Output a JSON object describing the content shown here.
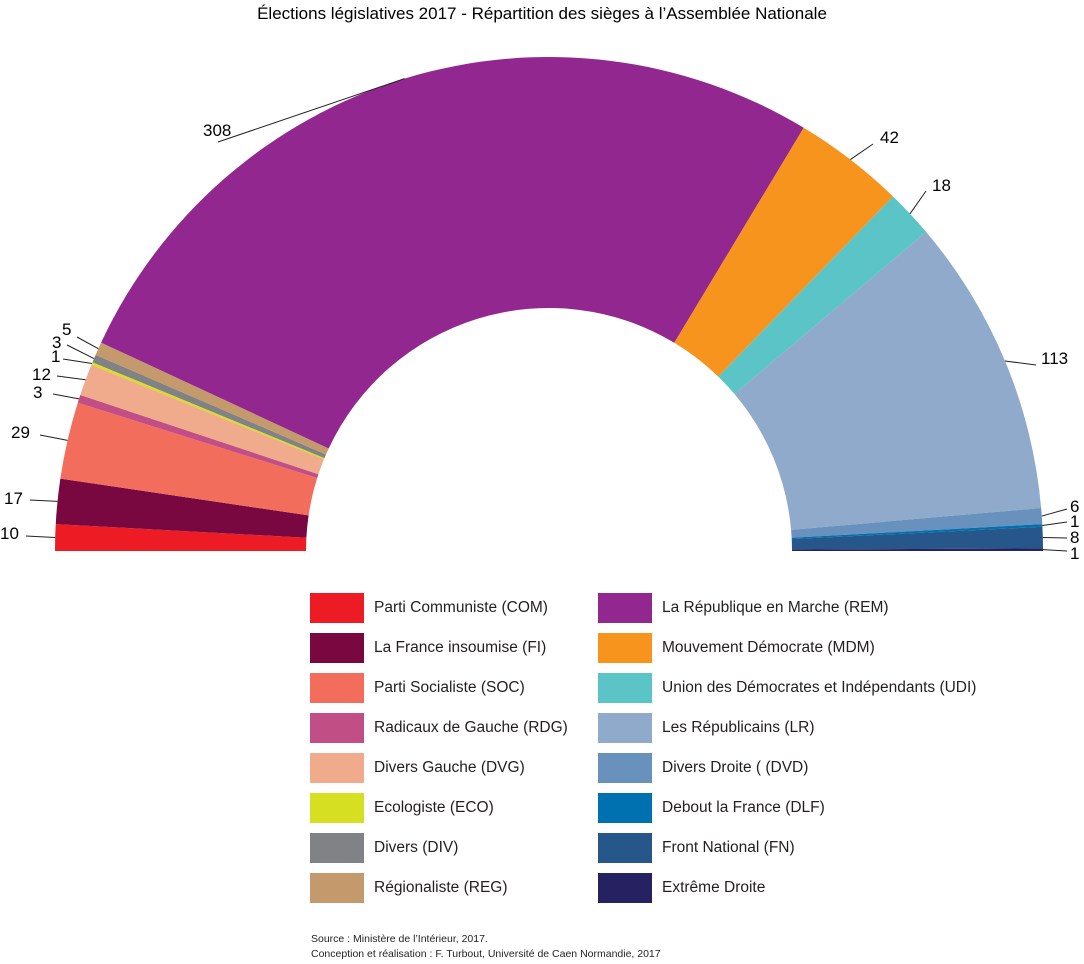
{
  "chart_data": {
    "type": "pie",
    "subtype": "semicircle-parliament",
    "title": "Élections législatives 2017 - Répartition des sièges à l’Assemblée Nationale",
    "total_seats": 577,
    "slices": [
      {
        "name": "Parti Communiste (COM)",
        "value": 10,
        "color": "#ed1c24",
        "label": "10"
      },
      {
        "name": "La France insoumise (FI)",
        "value": 17,
        "color": "#7a0840",
        "label": "17"
      },
      {
        "name": "Parti Socialiste (SOC)",
        "value": 29,
        "color": "#f26d5b",
        "label": "29"
      },
      {
        "name": "Radicaux de Gauche (RDG)",
        "value": 3,
        "color": "#c14f86",
        "label": "3"
      },
      {
        "name": "Divers Gauche (DVG)",
        "value": 12,
        "color": "#f0aa8c",
        "label": "12"
      },
      {
        "name": "Ecologiste (ECO)",
        "value": 1,
        "color": "#d7df23",
        "label": "1"
      },
      {
        "name": "Divers (DIV)",
        "value": 3,
        "color": "#808285",
        "label": "3"
      },
      {
        "name": "Régionaliste (REG)",
        "value": 5,
        "color": "#c49a6c",
        "label": "5"
      },
      {
        "name": "La République en Marche (REM)",
        "value": 308,
        "color": "#92278f",
        "label": "308"
      },
      {
        "name": "Mouvement Démocrate (MDM)",
        "value": 42,
        "color": "#f7941d",
        "label": "42"
      },
      {
        "name": "Union des Démocrates et Indépendants (UDI)",
        "value": 18,
        "color": "#5bc4c6",
        "label": "18"
      },
      {
        "name": "Les Républicains (LR)",
        "value": 113,
        "color": "#8faacb",
        "label": "113"
      },
      {
        "name": "Divers Droite ( (DVD)",
        "value": 6,
        "color": "#6891bd",
        "label": "6"
      },
      {
        "name": "Debout la France (DLF)",
        "value": 1,
        "color": "#0071b0",
        "label": "1"
      },
      {
        "name": "Front National (FN)",
        "value": 8,
        "color": "#27568a",
        "label": "8"
      },
      {
        "name": "Extrême Droite",
        "value": 1,
        "color": "#262262",
        "label": "1"
      }
    ],
    "legend_placement": "bottom, two columns"
  },
  "legend": {
    "columns": [
      [
        "Parti Communiste (COM)",
        "La France insoumise (FI)",
        "Parti Socialiste (SOC)",
        "Radicaux de Gauche (RDG)",
        "Divers Gauche (DVG)",
        "Ecologiste (ECO)",
        "Divers (DIV)",
        "Régionaliste (REG)"
      ],
      [
        "La République en Marche (REM)",
        "Mouvement Démocrate (MDM)",
        "Union des Démocrates et Indépendants (UDI)",
        "Les Républicains (LR)",
        "Divers Droite ( (DVD)",
        "Debout la France (DLF)",
        "Front National (FN)",
        "Extrême Droite"
      ]
    ]
  },
  "source": {
    "line1": "Source : Ministère de l’Intérieur, 2017.",
    "line2": "Conception et réalisation : F. Turbout, Université de Caen Normandie, 2017"
  }
}
